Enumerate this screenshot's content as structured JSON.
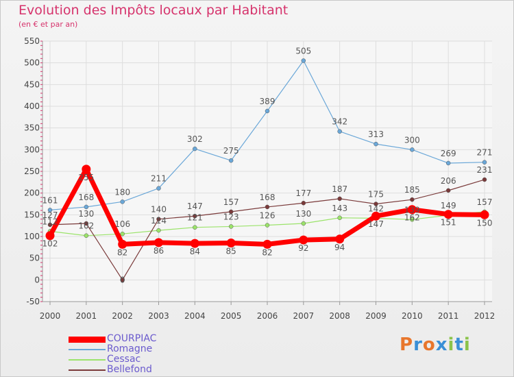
{
  "header": {
    "title": "Evolution des Impôts locaux par Habitant",
    "subtitle": "(en € et par an)"
  },
  "logo": {
    "text": "Proxiti",
    "letters": [
      "P",
      "r",
      "o",
      "x",
      "i",
      "t",
      "i"
    ],
    "colors": [
      "#e8762c",
      "#3a8fd6",
      "#e8762c",
      "#3a8fd6",
      "#8bc34a",
      "#3a8fd6",
      "#8bc34a"
    ]
  },
  "chart_data": {
    "type": "line",
    "x": [
      2000,
      2001,
      2002,
      2003,
      2004,
      2005,
      2006,
      2007,
      2008,
      2009,
      2010,
      2011,
      2012
    ],
    "ylim": [
      -50,
      550
    ],
    "yticks": [
      -50,
      0,
      50,
      100,
      150,
      200,
      250,
      300,
      350,
      400,
      450,
      500,
      550
    ],
    "grid": true,
    "legend_position": "bottom-left",
    "series": [
      {
        "name": "COURPIAC",
        "color": "#ff0000",
        "values": [
          102,
          255,
          82,
          86,
          84,
          85,
          82,
          92,
          94,
          147,
          162,
          151,
          150
        ],
        "labels": [
          102,
          255,
          82,
          86,
          84,
          85,
          82,
          92,
          94,
          147,
          162,
          151,
          150
        ]
      },
      {
        "name": "Romagne",
        "color": "#6aa7d8",
        "values": [
          161,
          168,
          180,
          211,
          302,
          275,
          389,
          505,
          342,
          313,
          300,
          269,
          271
        ],
        "labels": [
          161,
          168,
          180,
          211,
          302,
          275,
          389,
          505,
          342,
          313,
          300,
          269,
          271
        ]
      },
      {
        "name": "Cessac",
        "color": "#9be36a",
        "values": [
          112,
          102,
          106,
          114,
          121,
          123,
          126,
          130,
          143,
          142,
          139,
          149,
          157
        ],
        "labels": [
          112,
          102,
          106,
          114,
          121,
          123,
          126,
          130,
          143,
          142,
          139,
          149,
          157
        ]
      },
      {
        "name": "Bellefond",
        "color": "#7a3a3a",
        "values": [
          127,
          130,
          0,
          140,
          147,
          157,
          168,
          177,
          187,
          175,
          185,
          206,
          231
        ],
        "labels": [
          127,
          130,
          0,
          140,
          147,
          157,
          168,
          177,
          187,
          175,
          185,
          206,
          231
        ]
      }
    ]
  }
}
